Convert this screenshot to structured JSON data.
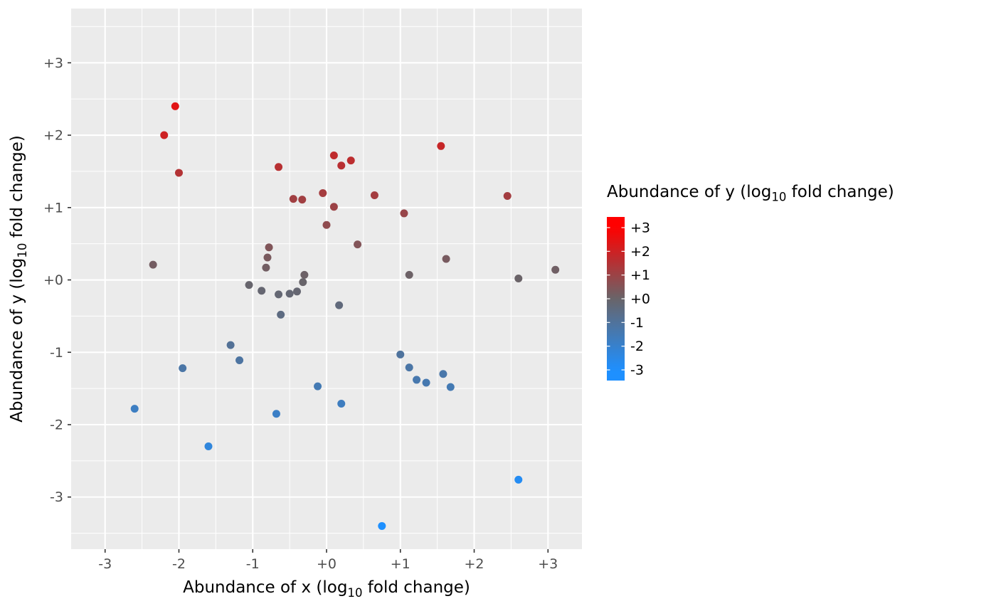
{
  "chart_data": {
    "type": "scatter",
    "title": "",
    "xlabel_parts": {
      "prefix": "Abundance of x (log",
      "sub": "10",
      "suffix": " fold change)"
    },
    "ylabel_parts": {
      "prefix": "Abundance of y (log",
      "sub": "10",
      "suffix": " fold change)"
    },
    "legend_title_parts": {
      "prefix": "Abundance of y (log",
      "sub": "10",
      "suffix": " fold change)"
    },
    "xlim": [
      -3.46,
      3.46
    ],
    "ylim": [
      -3.72,
      3.75
    ],
    "grid": true,
    "legend_position": "right",
    "x_ticks": [
      {
        "value": -3,
        "label": "-3"
      },
      {
        "value": -2,
        "label": "-2"
      },
      {
        "value": -1,
        "label": "-1"
      },
      {
        "value": 0,
        "label": "+0"
      },
      {
        "value": 1,
        "label": "+1"
      },
      {
        "value": 2,
        "label": "+2"
      },
      {
        "value": 3,
        "label": "+3"
      }
    ],
    "y_ticks": [
      {
        "value": 3,
        "label": "+3"
      },
      {
        "value": 2,
        "label": "+2"
      },
      {
        "value": 1,
        "label": "+1"
      },
      {
        "value": 0,
        "label": "+0"
      },
      {
        "value": -1,
        "label": "-1"
      },
      {
        "value": -2,
        "label": "-2"
      },
      {
        "value": -3,
        "label": "-3"
      }
    ],
    "legend_ticks": [
      {
        "value": 3,
        "label": "+3"
      },
      {
        "value": 2,
        "label": "+2"
      },
      {
        "value": 1,
        "label": "+1"
      },
      {
        "value": 0,
        "label": "+0"
      },
      {
        "value": -1,
        "label": "-1"
      },
      {
        "value": -2,
        "label": "-2"
      },
      {
        "value": -3,
        "label": "-3"
      }
    ],
    "colors": {
      "low": "#1E90FF",
      "mid": "#696469",
      "high": "#FF0000",
      "panel": "#EBEBEB",
      "grid": "#FFFFFF",
      "axis_text": "#4D4D4D",
      "tick_mark": "#333333",
      "legend_text": "#000000"
    },
    "points": [
      {
        "x": -2.05,
        "y": 2.4
      },
      {
        "x": -2.2,
        "y": 2.0
      },
      {
        "x": -2.0,
        "y": 1.48
      },
      {
        "x": -0.65,
        "y": 1.56
      },
      {
        "x": 0.1,
        "y": 1.72
      },
      {
        "x": 0.2,
        "y": 1.58
      },
      {
        "x": 0.33,
        "y": 1.65
      },
      {
        "x": 1.55,
        "y": 1.85
      },
      {
        "x": -0.45,
        "y": 1.12
      },
      {
        "x": -0.33,
        "y": 1.11
      },
      {
        "x": -0.05,
        "y": 1.2
      },
      {
        "x": 0.65,
        "y": 1.17
      },
      {
        "x": 2.45,
        "y": 1.16
      },
      {
        "x": 0.1,
        "y": 1.01
      },
      {
        "x": 1.05,
        "y": 0.92
      },
      {
        "x": 0.0,
        "y": 0.76
      },
      {
        "x": 0.42,
        "y": 0.49
      },
      {
        "x": -2.35,
        "y": 0.21
      },
      {
        "x": -0.78,
        "y": 0.45
      },
      {
        "x": -0.8,
        "y": 0.31
      },
      {
        "x": -0.82,
        "y": 0.17
      },
      {
        "x": -0.3,
        "y": 0.07
      },
      {
        "x": -0.32,
        "y": -0.03
      },
      {
        "x": -1.05,
        "y": -0.07
      },
      {
        "x": -0.88,
        "y": -0.15
      },
      {
        "x": -0.65,
        "y": -0.2
      },
      {
        "x": -0.5,
        "y": -0.19
      },
      {
        "x": -0.4,
        "y": -0.16
      },
      {
        "x": 1.12,
        "y": 0.07
      },
      {
        "x": 1.62,
        "y": 0.29
      },
      {
        "x": 2.6,
        "y": 0.02
      },
      {
        "x": 3.1,
        "y": 0.14
      },
      {
        "x": 0.17,
        "y": -0.35
      },
      {
        "x": -0.62,
        "y": -0.48
      },
      {
        "x": -1.3,
        "y": -0.9
      },
      {
        "x": -1.18,
        "y": -1.11
      },
      {
        "x": -1.95,
        "y": -1.22
      },
      {
        "x": 1.0,
        "y": -1.03
      },
      {
        "x": 1.12,
        "y": -1.21
      },
      {
        "x": 1.22,
        "y": -1.38
      },
      {
        "x": 1.35,
        "y": -1.42
      },
      {
        "x": 1.58,
        "y": -1.3
      },
      {
        "x": 1.68,
        "y": -1.48
      },
      {
        "x": -0.12,
        "y": -1.47
      },
      {
        "x": 0.2,
        "y": -1.71
      },
      {
        "x": -0.68,
        "y": -1.85
      },
      {
        "x": -2.6,
        "y": -1.78
      },
      {
        "x": -1.6,
        "y": -2.3
      },
      {
        "x": 2.6,
        "y": -2.76
      },
      {
        "x": 0.75,
        "y": -3.4
      }
    ]
  }
}
